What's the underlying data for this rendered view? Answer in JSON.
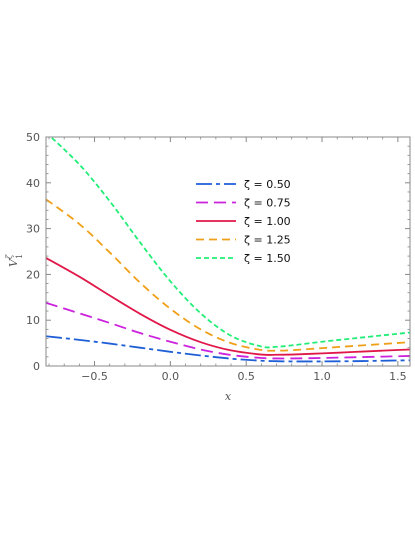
{
  "chart_data": {
    "type": "line",
    "xlabel": "x",
    "ylabel_main": "V",
    "ylabel_sup": "ζ",
    "ylabel_sub": "1",
    "xlim": [
      -0.82,
      1.58
    ],
    "ylim": [
      0,
      50
    ],
    "xticks": [
      -0.5,
      0.0,
      0.5,
      1.0,
      1.5
    ],
    "xtick_labels": [
      "−0.5",
      "0.0",
      "0.5",
      "1.0",
      "1.5"
    ],
    "yticks": [
      0,
      10,
      20,
      30,
      40,
      50
    ],
    "ytick_labels": [
      "0",
      "10",
      "20",
      "30",
      "40",
      "50"
    ],
    "legend_position": "upper-center",
    "grid": false,
    "x": [
      -0.82,
      -0.6,
      -0.4,
      -0.2,
      0.0,
      0.2,
      0.4,
      0.6,
      0.7,
      0.8,
      1.0,
      1.2,
      1.4,
      1.58
    ],
    "series": [
      {
        "name": "ζ = 0.50",
        "color": "#1f5fd6",
        "dash": "16 4 4 4",
        "values": [
          6.5,
          5.7,
          4.9,
          4.0,
          3.1,
          2.3,
          1.6,
          1.15,
          1.05,
          1.0,
          1.0,
          1.05,
          1.15,
          1.25
        ]
      },
      {
        "name": "ζ = 0.75",
        "color": "#cc22dd",
        "dash": "12 6",
        "values": [
          13.8,
          11.5,
          9.4,
          7.2,
          5.3,
          3.6,
          2.4,
          1.75,
          1.65,
          1.65,
          1.75,
          1.9,
          2.05,
          2.2
        ]
      },
      {
        "name": "ζ = 1.00",
        "color": "#e0184a",
        "dash": "",
        "values": [
          23.6,
          19.5,
          15.4,
          11.4,
          7.9,
          5.2,
          3.4,
          2.5,
          2.45,
          2.5,
          2.75,
          3.05,
          3.35,
          3.6
        ]
      },
      {
        "name": "ζ = 1.25",
        "color": "#f0a018",
        "dash": "8 5",
        "values": [
          36.4,
          31.0,
          24.8,
          18.2,
          12.5,
          8.0,
          5.0,
          3.5,
          3.35,
          3.45,
          3.9,
          4.35,
          4.8,
          5.2
        ]
      },
      {
        "name": "ζ = 1.50",
        "color": "#22ee77",
        "dash": "5 3",
        "values": [
          51.0,
          44.0,
          36.0,
          27.0,
          18.5,
          11.5,
          6.6,
          4.25,
          4.2,
          4.5,
          5.3,
          6.0,
          6.7,
          7.3
        ]
      }
    ]
  }
}
